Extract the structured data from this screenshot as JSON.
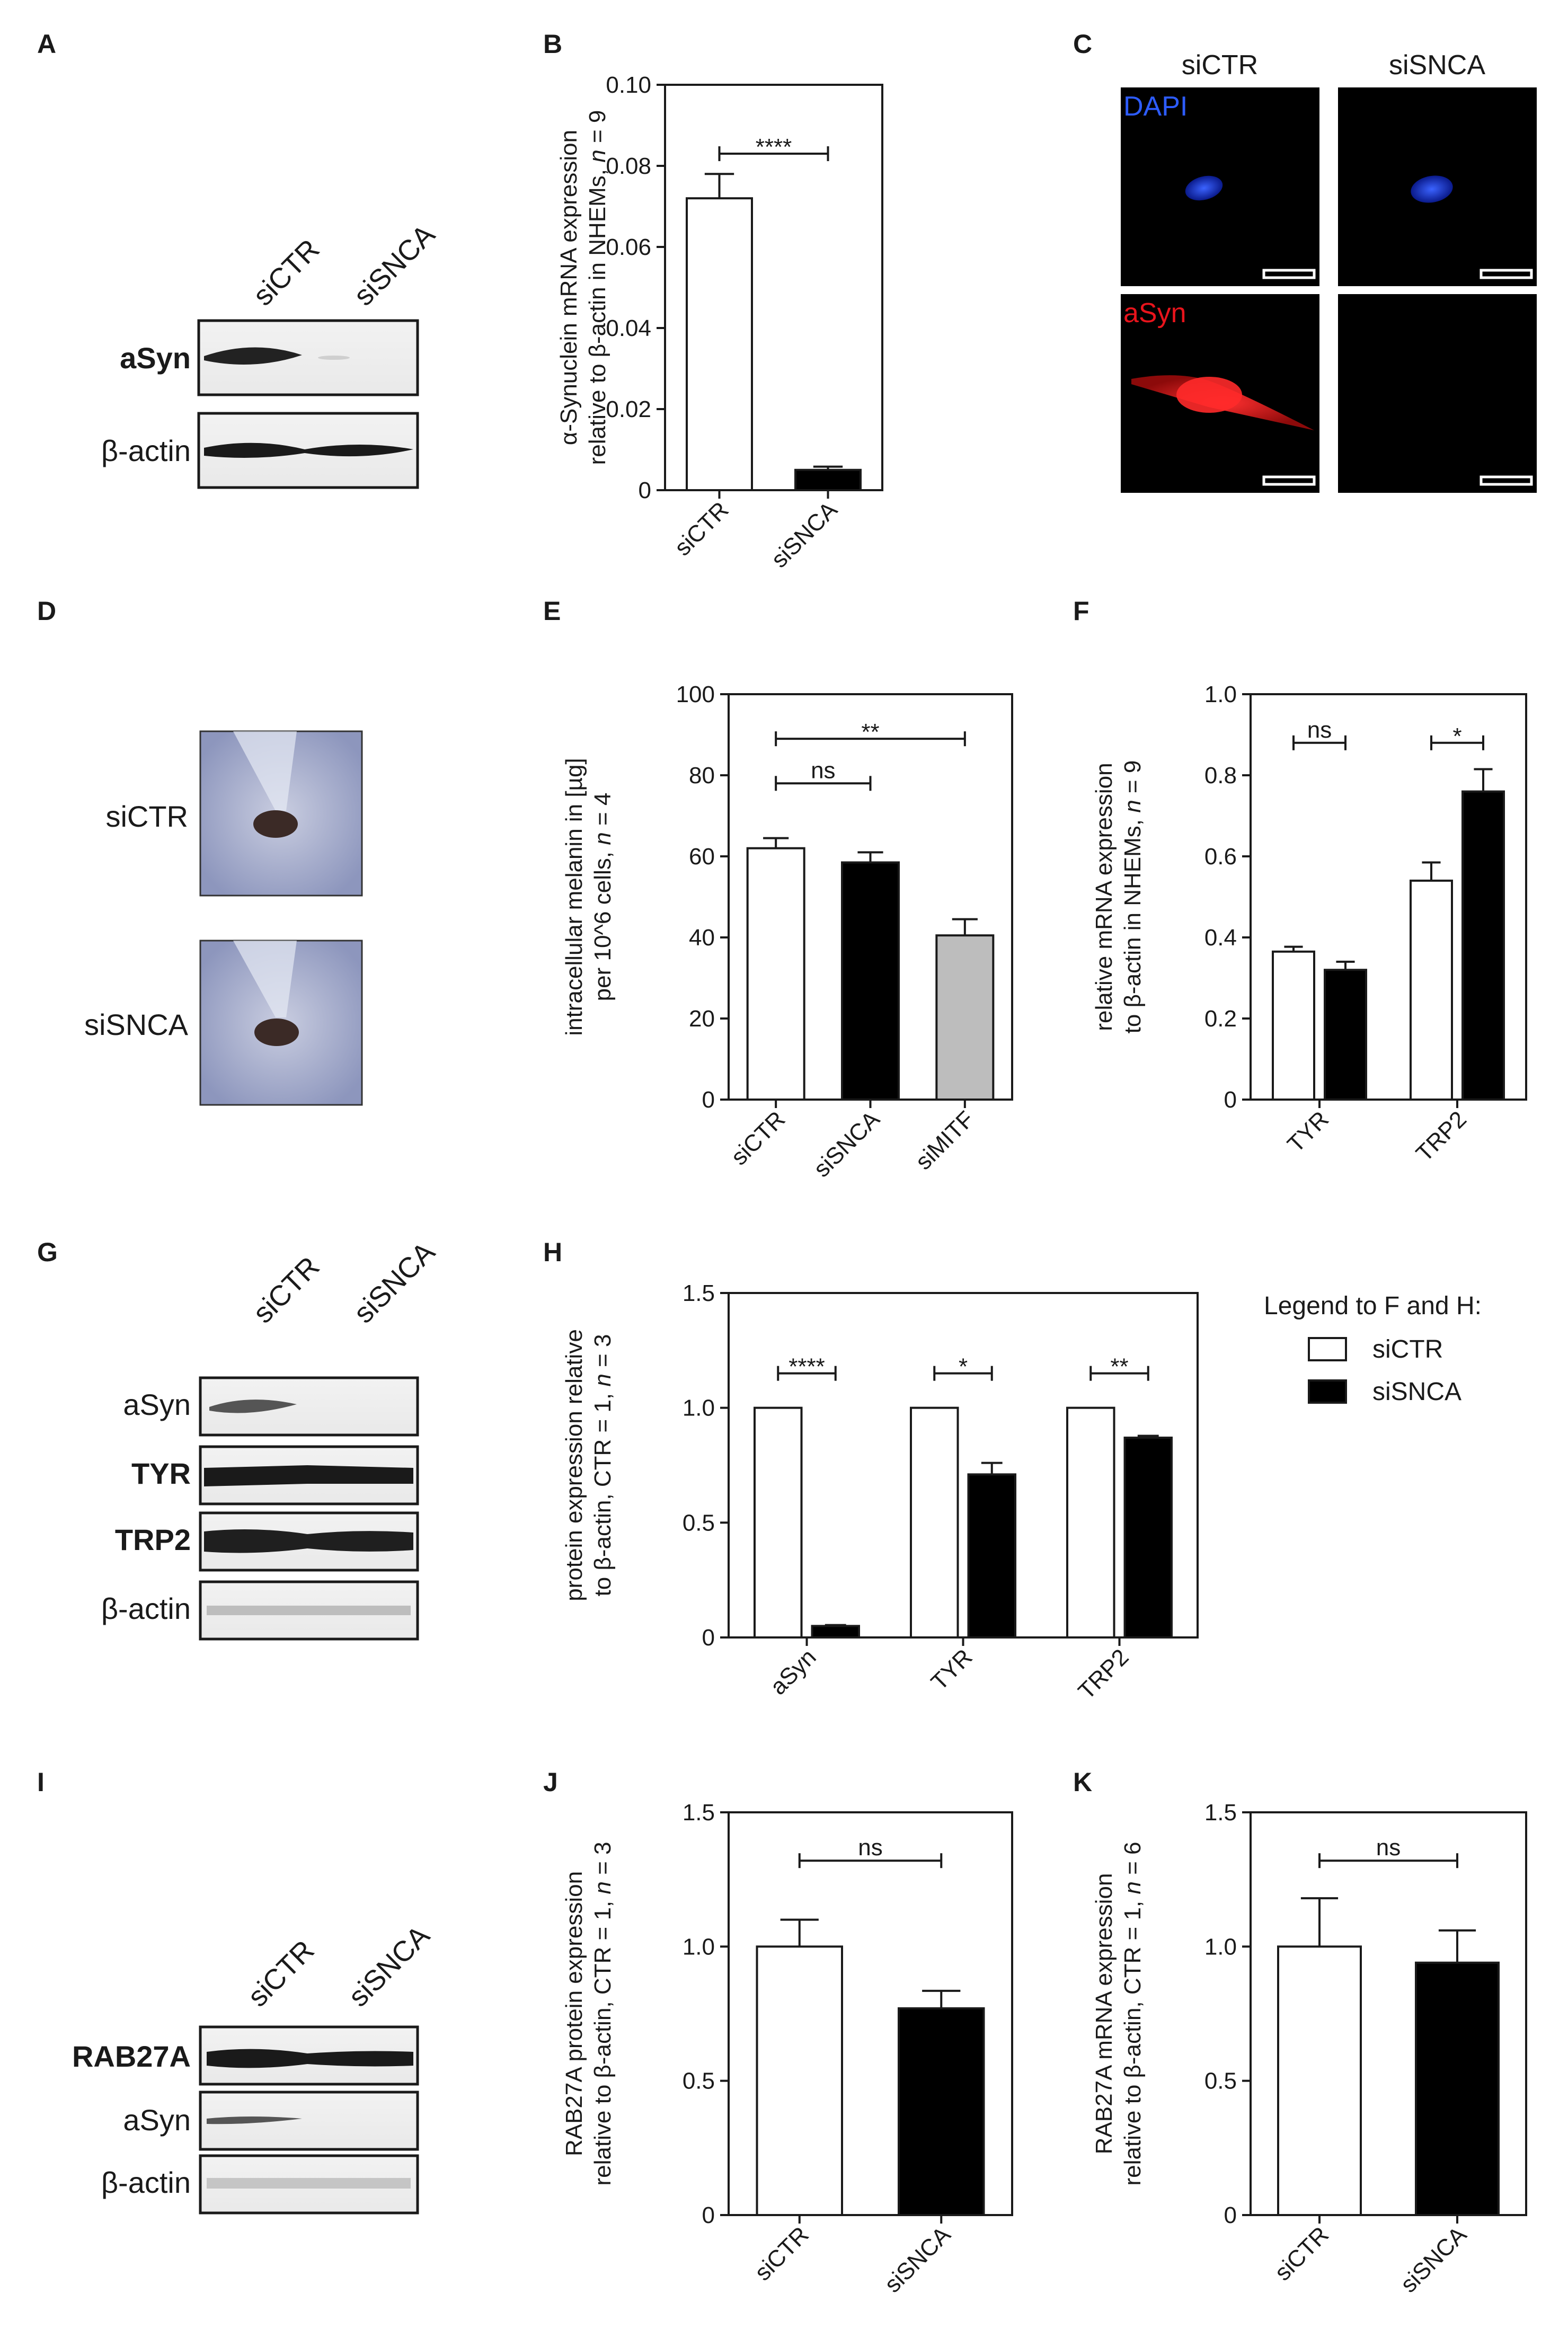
{
  "panel_labels": {
    "A": "A",
    "B": "B",
    "C": "C",
    "D": "D",
    "E": "E",
    "F": "F",
    "G": "G",
    "H": "H",
    "I": "I",
    "J": "J",
    "K": "K"
  },
  "colors": {
    "siCTR": "#ffffff",
    "siSNCA": "#000000",
    "siMITF": "#bdbdbd",
    "dapi": "#2d5cff",
    "asyn_stain": "#e8141c"
  },
  "blots": {
    "A": {
      "lanes": [
        "siCTR",
        "siSNCA"
      ],
      "rows": [
        {
          "label": "aSyn",
          "bold": true
        },
        {
          "label": "β-actin",
          "bold": false
        }
      ]
    },
    "G": {
      "lanes": [
        "siCTR",
        "siSNCA"
      ],
      "rows": [
        {
          "label": "aSyn",
          "bold": false
        },
        {
          "label": "TYR",
          "bold": true
        },
        {
          "label": "TRP2",
          "bold": true
        },
        {
          "label": "β-actin",
          "bold": false
        }
      ]
    },
    "I": {
      "lanes": [
        "siCTR",
        "siSNCA"
      ],
      "rows": [
        {
          "label": "RAB27A",
          "bold": true
        },
        {
          "label": "aSyn",
          "bold": false
        },
        {
          "label": "β-actin",
          "bold": false
        }
      ]
    }
  },
  "microscopy": {
    "columns": [
      "siCTR",
      "siSNCA"
    ],
    "channels": [
      "DAPI",
      "aSyn"
    ]
  },
  "pellets": {
    "labels": [
      "siCTR",
      "siSNCA"
    ]
  },
  "legend": {
    "title": "Legend to F and H:",
    "items": [
      {
        "label": "siCTR",
        "color": "#ffffff"
      },
      {
        "label": "siSNCA",
        "color": "#000000"
      }
    ]
  },
  "chart_data": [
    {
      "panel": "B",
      "type": "bar",
      "ylabel": "α-Synuclein mRNA expression|relative to β-actin in NHEMs, n = 9",
      "categories": [
        "siCTR",
        "siSNCA"
      ],
      "values": [
        0.072,
        0.005
      ],
      "errors": [
        0.006,
        0.0008
      ],
      "colors": [
        "#ffffff",
        "#000000"
      ],
      "ylim": [
        0,
        0.1
      ],
      "yticks": [
        0,
        0.02,
        0.04,
        0.06,
        0.08,
        0.1
      ],
      "ytick_labels": [
        "0",
        "0.02",
        "0.04",
        "0.06",
        "0.08",
        "0.10"
      ],
      "significance": [
        {
          "from": 0,
          "to": 1,
          "label": "****",
          "y": 0.083
        }
      ]
    },
    {
      "panel": "E",
      "type": "bar",
      "ylabel": "intracellular melanin in [µg]|per 10^6 cells, n = 4",
      "categories": [
        "siCTR",
        "siSNCA",
        "siMITF"
      ],
      "values": [
        62,
        58.5,
        40.5
      ],
      "errors": [
        2.5,
        2.5,
        4
      ],
      "colors": [
        "#ffffff",
        "#000000",
        "#bdbdbd"
      ],
      "ylim": [
        0,
        100
      ],
      "yticks": [
        0,
        20,
        40,
        60,
        80,
        100
      ],
      "ytick_labels": [
        "0",
        "20",
        "40",
        "60",
        "80",
        "100"
      ],
      "significance": [
        {
          "from": 0,
          "to": 1,
          "label": "ns",
          "y": 78
        },
        {
          "from": 0,
          "to": 2,
          "label": "**",
          "y": 89
        }
      ]
    },
    {
      "panel": "F",
      "type": "bar",
      "ylabel": "relative mRNA expression|to β-actin in NHEMs, n = 9",
      "categories": [
        "TYR",
        "TRP2"
      ],
      "series": [
        {
          "name": "siCTR",
          "values": [
            0.365,
            0.54
          ],
          "errors": [
            0.012,
            0.045
          ]
        },
        {
          "name": "siSNCA",
          "values": [
            0.32,
            0.76
          ],
          "errors": [
            0.02,
            0.055
          ]
        }
      ],
      "colors": [
        "#ffffff",
        "#000000"
      ],
      "ylim": [
        0,
        1.0
      ],
      "yticks": [
        0,
        0.2,
        0.4,
        0.6,
        0.8,
        1.0
      ],
      "ytick_labels": [
        "0",
        "0.2",
        "0.4",
        "0.6",
        "0.8",
        "1.0"
      ],
      "significance": [
        {
          "group": 0,
          "label": "ns",
          "y": 0.88
        },
        {
          "group": 1,
          "label": "*",
          "y": 0.88
        }
      ]
    },
    {
      "panel": "H",
      "type": "bar",
      "ylabel": "protein expression relative|to β-actin, CTR = 1, n = 3",
      "categories": [
        "aSyn",
        "TYR",
        "TRP2"
      ],
      "series": [
        {
          "name": "siCTR",
          "values": [
            1.0,
            1.0,
            1.0
          ],
          "errors": [
            0,
            0,
            0
          ]
        },
        {
          "name": "siSNCA",
          "values": [
            0.05,
            0.71,
            0.87
          ],
          "errors": [
            0.004,
            0.05,
            0.008
          ]
        }
      ],
      "colors": [
        "#ffffff",
        "#000000"
      ],
      "ylim": [
        0,
        1.5
      ],
      "yticks": [
        0,
        0.5,
        1.0,
        1.5
      ],
      "ytick_labels": [
        "0",
        "0.5",
        "1.0",
        "1.5"
      ],
      "significance": [
        {
          "group": 0,
          "label": "****",
          "y": 1.15
        },
        {
          "group": 1,
          "label": "*",
          "y": 1.15
        },
        {
          "group": 2,
          "label": "**",
          "y": 1.15
        }
      ]
    },
    {
      "panel": "J",
      "type": "bar",
      "ylabel": "RAB27A protein expression|relative to β-actin, CTR = 1, n = 3",
      "categories": [
        "siCTR",
        "siSNCA"
      ],
      "values": [
        1.0,
        0.77
      ],
      "errors": [
        0.1,
        0.065
      ],
      "colors": [
        "#ffffff",
        "#000000"
      ],
      "ylim": [
        0,
        1.5
      ],
      "yticks": [
        0,
        0.5,
        1.0,
        1.5
      ],
      "ytick_labels": [
        "0",
        "0.5",
        "1.0",
        "1.5"
      ],
      "significance": [
        {
          "from": 0,
          "to": 1,
          "label": "ns",
          "y": 1.32
        }
      ]
    },
    {
      "panel": "K",
      "type": "bar",
      "ylabel": "RAB27A mRNA expression|relative to β-actin, CTR = 1, n = 6",
      "categories": [
        "siCTR",
        "siSNCA"
      ],
      "values": [
        1.0,
        0.94
      ],
      "errors": [
        0.18,
        0.12
      ],
      "colors": [
        "#ffffff",
        "#000000"
      ],
      "ylim": [
        0,
        1.5
      ],
      "yticks": [
        0,
        0.5,
        1.0,
        1.5
      ],
      "ytick_labels": [
        "0",
        "0.5",
        "1.0",
        "1.5"
      ],
      "significance": [
        {
          "from": 0,
          "to": 1,
          "label": "ns",
          "y": 1.32
        }
      ]
    }
  ]
}
